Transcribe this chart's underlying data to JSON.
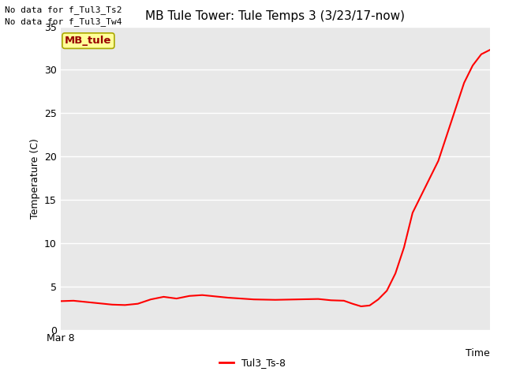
{
  "title": "MB Tule Tower: Tule Temps 3 (3/23/17-now)",
  "ylabel": "Temperature (C)",
  "xlabel": "Time",
  "ylim": [
    0,
    35
  ],
  "yticks": [
    0,
    5,
    10,
    15,
    20,
    25,
    30,
    35
  ],
  "xmin_label": "Mar 8",
  "no_data_text": [
    "No data for f_Tul3_Ts2",
    "No data for f_Tul3_Tw4"
  ],
  "legend_label": "Tul3_Ts-8",
  "line_color": "#ff0000",
  "annotation_box_text": "MB_tule",
  "annotation_box_facecolor": "#ffff99",
  "annotation_box_edgecolor": "#aaa800",
  "annotation_box_textcolor": "#990000",
  "figure_facecolor": "#ffffff",
  "plot_bg_color": "#e8e8e8",
  "grid_color": "#ffffff",
  "title_fontsize": 11,
  "tick_fontsize": 9,
  "ylabel_fontsize": 9,
  "x_data": [
    0.0,
    0.03,
    0.06,
    0.09,
    0.12,
    0.15,
    0.18,
    0.21,
    0.24,
    0.27,
    0.3,
    0.33,
    0.36,
    0.39,
    0.42,
    0.45,
    0.5,
    0.55,
    0.6,
    0.63,
    0.66,
    0.68,
    0.7,
    0.72,
    0.74,
    0.76,
    0.78,
    0.8,
    0.82,
    0.84,
    0.86,
    0.88,
    0.9,
    0.92,
    0.94,
    0.96,
    0.98,
    1.0
  ],
  "y_data": [
    3.3,
    3.35,
    3.2,
    3.05,
    2.9,
    2.85,
    3.0,
    3.5,
    3.8,
    3.6,
    3.9,
    4.0,
    3.85,
    3.7,
    3.6,
    3.5,
    3.45,
    3.5,
    3.55,
    3.4,
    3.35,
    3.0,
    2.7,
    2.8,
    3.5,
    4.5,
    6.5,
    9.5,
    13.5,
    15.5,
    17.5,
    19.5,
    22.5,
    25.5,
    28.5,
    30.5,
    31.8,
    32.3
  ]
}
